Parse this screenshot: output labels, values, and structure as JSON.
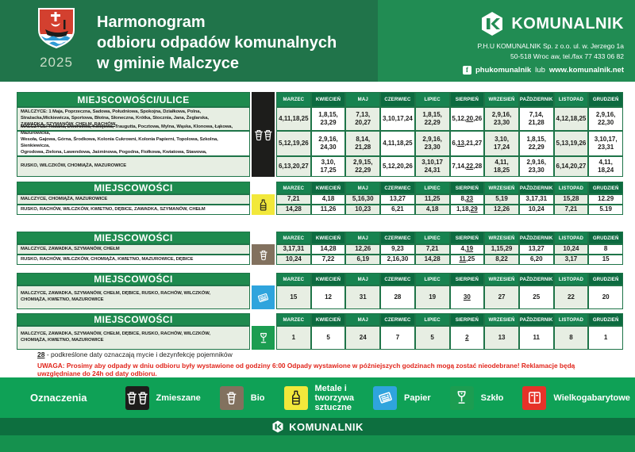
{
  "header": {
    "year": "2025",
    "title_lines": [
      "Harmonogram",
      "odbioru odpadów komunalnych",
      "w gminie Malczyce"
    ],
    "company": {
      "name": "KOMUNALNIK",
      "address1": "P.H.U KOMUNALNIK Sp. z o.o. ul. w. Jerzego 1a",
      "address2": "50-518 Wroc aw, tel./fax 77 433 06 82",
      "facebook_label": "phukomunalnik",
      "separator": "lub",
      "website": "www.komunalnik.net"
    }
  },
  "months": [
    "MARZEC",
    "KWIECIEŃ",
    "MAJ",
    "CZERWIEC",
    "LIPIEC",
    "SIERPIEŃ",
    "WRZESIEŃ",
    "PAŹDZIERNIK",
    "LISTOPAD",
    "GRUDZIEŃ"
  ],
  "tables": [
    {
      "name": "zmieszane",
      "header": "MIEJSCOWOŚCI/ULICE",
      "icon": "bins-double",
      "icon_bg": "#1D1D1B",
      "icon_fg": "#FFFFFF",
      "rows": [
        {
          "places": "MALCZYCE: 1 Maja, Poprzeczna, Sadowa, Południowa, Spokojna, Działkowa, Polna,\nStrażacka,Mickiewicza, Sportowa, Błotna, Słoneczna, Krótka, Stocznia, Jana, Żeglarska,\n[ZAWADKA, SZYMANÓW, CHEŁM, RACHÓW]",
          "dates": [
            "4,11,18,25",
            "1,8,15,\n23,29",
            "7,13,\n20,27",
            "3,10,17,24",
            "1,8,15,\n22,29",
            "5,12,[20],26",
            "2,9,16,\n23,30",
            "7,14,\n21,28",
            "4,12,18,25",
            "2,9,16,\n22,30"
          ]
        },
        {
          "places": "MALCZYCE: Różana, Dworcowa, Kolejowa, Traugutta, Pocztowa, Mylna, Wąska, Klonowa, Łąkowa, Mazurowicka,\nWesoła, Gajowa, Górna, Środkowa, Kolonia Cukrowni, Kolonia Papierni, Topolowa, Szkolna, Sienkiewicza,\nOgrodowa, Zielona, Lawendowa, Jaśminowa, Pogodna, Fiołkowa, Kwiatowa, Stawowa, [DĘBICE, KWIETNO]",
          "dates": [
            "5,12,19,26",
            "2,9,16,\n24,30",
            "8,14,\n21,28",
            "4,11,18,25",
            "2,9,16,\n23,30",
            "6,[13],21,27",
            "3,10,\n17,24",
            "1,8,15,\n22,29",
            "5,13,19,26",
            "3,10,17,\n23,31"
          ]
        },
        {
          "places": "RUSKO, WILCZKÓW, CHOMIĄŻA, MAZUROWICE",
          "dates": [
            "6,13,20,27",
            "3,10,\n17,25",
            "2,9,15,\n22,29",
            "5,12,20,26",
            "3,10,17\n24,31",
            "7,14,[22],28",
            "4,11,\n18,25",
            "2,9,16,\n23,30",
            "6,14,20,27",
            "4,11,\n18,24"
          ]
        }
      ]
    },
    {
      "name": "metale-tworzywa",
      "header": "MIEJSCOWOŚCI",
      "icon": "bottle",
      "icon_bg": "#F2E83B",
      "icon_fg": "#1D1D1B",
      "rows": [
        {
          "places": "MALCZYCE, CHOMIĄŻA, MAZUROWICE",
          "dates": [
            "7,21",
            "4,18",
            "5,16,30",
            "13,27",
            "11,25",
            "8,[23]",
            "5,19",
            "3,17,31",
            "15,28",
            "12.29"
          ]
        },
        {
          "places": "RUSKO, RACHÓW, WILCZKÓW, KWIETNO, DĘBICE, ZAWADKA, SZYMANÓW, CHEŁM",
          "dates": [
            "14,28",
            "11,26",
            "10,23",
            "6,21",
            "4,18",
            "1,18,[29]",
            "12,26",
            "10,24",
            "7,21",
            "5.19"
          ]
        }
      ]
    },
    {
      "name": "bio",
      "header": "MIEJSCOWOŚCI",
      "icon": "bin",
      "icon_bg": "#82715E",
      "icon_fg": "#FFFFFF",
      "rows": [
        {
          "places": "MALCZYCE, ZAWADKA, SZYMANÓW, CHEŁM",
          "dates": [
            "3,17,31",
            "14,28",
            "12,26",
            "9,23",
            "7,21",
            "4,[19]",
            "1,15,29",
            "13,27",
            "10,24",
            "8"
          ]
        },
        {
          "places": "RUSKO, RACHÓW, WILCZKÓW, CHOMIĄŻA, KWIETNO, MAZUROWICE, DĘBICE",
          "dates": [
            "10,24",
            "7,22",
            "6,19",
            "2,16,30",
            "14,28",
            "[11],25",
            "8,22",
            "6,20",
            "3,17",
            "15"
          ]
        }
      ]
    },
    {
      "name": "papier",
      "header": "MIEJSCOWOŚCI",
      "icon": "newspaper",
      "icon_bg": "#2FA4DD",
      "icon_fg": "#FFFFFF",
      "rows": [
        {
          "places": "MALCZYCE, ZAWADKA, SZYMANÓW, CHEŁM, DĘBICE, RUSKO, RACHÓW, WILCZKÓW,\nCHOMIĄŻA, KWIETNO, MAZUROWICE",
          "dates": [
            "15",
            "12",
            "31",
            "28",
            "19",
            "[30]",
            "27",
            "25",
            "22",
            "20"
          ]
        }
      ]
    },
    {
      "name": "szklo",
      "header": "MIEJSCOWOŚCI",
      "icon": "glass",
      "icon_bg": "#1C9D51",
      "icon_fg": "#FFFFFF",
      "rows": [
        {
          "places": "MALCZYCE, ZAWADKA, SZYMANÓW, CHEŁM, DĘBICE, RUSKO, RACHÓW, WILCZKÓW,\nCHOMIĄŻA, KWIETNO, MAZUROWICE",
          "dates": [
            "1",
            "5",
            "24",
            "7",
            "5",
            "[2]",
            "13",
            "11",
            "8",
            "1"
          ]
        }
      ]
    }
  ],
  "footnote": {
    "marker": "28",
    "text": "-  podkreślone daty oznaczają mycie i dezynfekcję pojemników"
  },
  "warning": "UWAGA: Prosimy aby odpady w dniu odbioru były wystawione od godziny 6:00 Odpady wystawione w późniejszych godzinach mogą zostać nieodebrane! Reklamacje będą uwzględniane do 24h od daty odbioru.",
  "legend": {
    "title": "Oznaczenia",
    "items": [
      {
        "label": "Zmieszane",
        "color": "#1D1D1B",
        "icon": "bins-double",
        "icon_color": "#FFFFFF"
      },
      {
        "label": "Bio",
        "color": "#82715E",
        "icon": "bin",
        "icon_color": "#FFFFFF"
      },
      {
        "label": "Metale i tworzywa\nsztuczne",
        "color": "#F2E83B",
        "icon": "bottle",
        "icon_color": "#1D1D1B"
      },
      {
        "label": "Papier",
        "color": "#2FA4DD",
        "icon": "newspaper",
        "icon_color": "#FFFFFF"
      },
      {
        "label": "Szkło",
        "color": "#1C9D51",
        "icon": "glass",
        "icon_color": "#FFFFFF"
      },
      {
        "label": "Wielkogabarytowe",
        "color": "#E63229",
        "icon": "furniture",
        "icon_color": "#FFFFFF"
      }
    ]
  },
  "footer": {
    "logo_text": "KOMUNALNIK"
  },
  "colors": {
    "header_green": "#20744A",
    "panel_green": "#218C53",
    "bar_green": "#1E8A4E",
    "border_green": "#1E7448",
    "month_header_light": "#178350",
    "month_header_dark": "#0D6B40",
    "cell_tint": "#E7EEE3",
    "legend_green": "#0FA156",
    "bottom_strip_dark": "#0D6F3F",
    "bottom_strip_light": "#15914E",
    "warning_red": "#E1251B"
  }
}
